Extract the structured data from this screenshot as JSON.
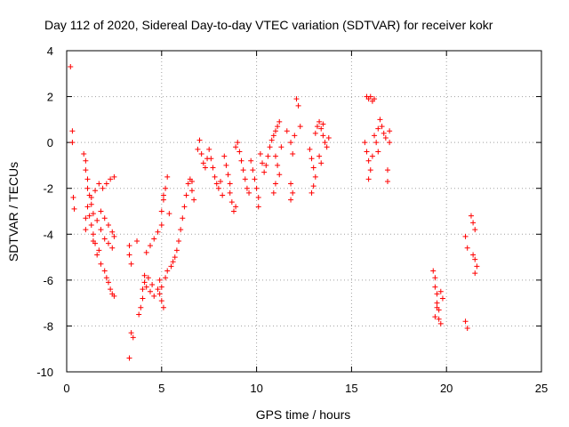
{
  "chart_data": {
    "type": "scatter",
    "title": "Day 112 of 2020, Sidereal Day-to-day VTEC variation (SDTVAR) for receiver kokr",
    "xlabel": "GPS time / hours",
    "ylabel": "SDTVAR / TECUs",
    "xlim": [
      0,
      25
    ],
    "ylim": [
      -10,
      4
    ],
    "xticks": [
      "0",
      "5",
      "10",
      "15",
      "20",
      "25"
    ],
    "yticks": [
      "-10",
      "-8",
      "-6",
      "-4",
      "-2",
      "0",
      "2",
      "4"
    ],
    "grid": true,
    "marker": "plus",
    "color": "#ff0000",
    "series": [
      {
        "name": "SDTVAR",
        "points": [
          [
            0.2,
            3.3
          ],
          [
            0.3,
            0.5
          ],
          [
            0.3,
            0.0
          ],
          [
            0.35,
            -2.4
          ],
          [
            0.4,
            -2.9
          ],
          [
            0.9,
            -0.5
          ],
          [
            1.0,
            -0.8
          ],
          [
            1.0,
            -1.2
          ],
          [
            1.1,
            -1.6
          ],
          [
            1.1,
            -2.0
          ],
          [
            1.2,
            -2.3
          ],
          [
            1.3,
            -2.7
          ],
          [
            1.4,
            -3.1
          ],
          [
            1.6,
            -3.4
          ],
          [
            1.8,
            -3.8
          ],
          [
            2.0,
            -4.2
          ],
          [
            2.2,
            -4.4
          ],
          [
            2.4,
            -4.6
          ],
          [
            1.1,
            -2.8
          ],
          [
            1.2,
            -3.2
          ],
          [
            1.3,
            -3.6
          ],
          [
            1.4,
            -4.0
          ],
          [
            1.5,
            -4.4
          ],
          [
            1.6,
            -4.9
          ],
          [
            1.8,
            -5.3
          ],
          [
            2.0,
            -5.6
          ],
          [
            2.1,
            -5.9
          ],
          [
            2.2,
            -6.1
          ],
          [
            2.3,
            -6.4
          ],
          [
            2.4,
            -6.6
          ],
          [
            2.5,
            -6.7
          ],
          [
            1.3,
            -2.4
          ],
          [
            1.5,
            -2.1
          ],
          [
            1.7,
            -1.8
          ],
          [
            1.9,
            -2.0
          ],
          [
            2.1,
            -1.8
          ],
          [
            2.3,
            -1.6
          ],
          [
            2.5,
            -1.5
          ],
          [
            1.0,
            -3.3
          ],
          [
            1.0,
            -3.8
          ],
          [
            1.4,
            -4.3
          ],
          [
            1.7,
            -4.7
          ],
          [
            1.8,
            -3.0
          ],
          [
            2.0,
            -3.3
          ],
          [
            2.2,
            -3.6
          ],
          [
            2.4,
            -3.9
          ],
          [
            2.5,
            -4.1
          ],
          [
            3.3,
            -4.5
          ],
          [
            3.3,
            -4.9
          ],
          [
            3.4,
            -5.3
          ],
          [
            3.4,
            -8.3
          ],
          [
            3.5,
            -8.5
          ],
          [
            3.3,
            -9.4
          ],
          [
            3.7,
            -4.3
          ],
          [
            3.8,
            -7.5
          ],
          [
            3.9,
            -7.2
          ],
          [
            4.0,
            -6.8
          ],
          [
            4.0,
            -6.4
          ],
          [
            4.1,
            -6.1
          ],
          [
            4.1,
            -5.8
          ],
          [
            4.2,
            -6.3
          ],
          [
            4.4,
            -6.5
          ],
          [
            4.6,
            -6.7
          ],
          [
            4.8,
            -6.4
          ],
          [
            4.9,
            -6.0
          ],
          [
            4.5,
            -6.2
          ],
          [
            4.3,
            -5.9
          ],
          [
            4.2,
            -4.8
          ],
          [
            4.4,
            -4.5
          ],
          [
            4.6,
            -4.2
          ],
          [
            4.8,
            -3.9
          ],
          [
            5.0,
            -3.6
          ],
          [
            4.9,
            -6.6
          ],
          [
            5.0,
            -6.9
          ],
          [
            5.1,
            -7.2
          ],
          [
            5.0,
            -6.3
          ],
          [
            5.2,
            -5.9
          ],
          [
            5.3,
            -5.6
          ],
          [
            5.5,
            -5.4
          ],
          [
            5.6,
            -5.2
          ],
          [
            5.7,
            -5.0
          ],
          [
            5.8,
            -4.7
          ],
          [
            5.9,
            -4.3
          ],
          [
            6.0,
            -3.8
          ],
          [
            6.1,
            -3.3
          ],
          [
            6.2,
            -2.8
          ],
          [
            6.3,
            -2.3
          ],
          [
            6.4,
            -1.8
          ],
          [
            6.5,
            -1.6
          ],
          [
            5.0,
            -3.0
          ],
          [
            5.1,
            -2.5
          ],
          [
            5.2,
            -2.0
          ],
          [
            5.3,
            -1.5
          ],
          [
            5.1,
            -2.3
          ],
          [
            5.4,
            -3.1
          ],
          [
            6.6,
            -2.1
          ],
          [
            6.7,
            -2.5
          ],
          [
            6.6,
            -1.7
          ],
          [
            6.9,
            -0.3
          ],
          [
            7.0,
            0.1
          ],
          [
            7.1,
            -0.5
          ],
          [
            7.2,
            -0.9
          ],
          [
            7.3,
            -1.1
          ],
          [
            7.4,
            -0.7
          ],
          [
            7.5,
            -0.3
          ],
          [
            7.6,
            -0.7
          ],
          [
            7.7,
            -1.1
          ],
          [
            7.8,
            -1.5
          ],
          [
            7.9,
            -1.8
          ],
          [
            8.0,
            -2.0
          ],
          [
            8.1,
            -1.7
          ],
          [
            8.2,
            -2.3
          ],
          [
            8.3,
            -0.6
          ],
          [
            8.4,
            -1.0
          ],
          [
            8.5,
            -1.4
          ],
          [
            8.6,
            -1.8
          ],
          [
            8.6,
            -2.2
          ],
          [
            8.7,
            -2.6
          ],
          [
            8.8,
            -3.0
          ],
          [
            8.9,
            -2.8
          ],
          [
            8.9,
            -0.2
          ],
          [
            9.0,
            0.0
          ],
          [
            9.1,
            -0.4
          ],
          [
            9.2,
            -0.8
          ],
          [
            9.3,
            -1.2
          ],
          [
            9.4,
            -1.6
          ],
          [
            9.5,
            -2.0
          ],
          [
            9.6,
            -2.2
          ],
          [
            9.7,
            -0.8
          ],
          [
            9.8,
            -1.2
          ],
          [
            9.9,
            -1.6
          ],
          [
            10.0,
            -2.0
          ],
          [
            10.1,
            -2.4
          ],
          [
            10.1,
            -2.8
          ],
          [
            10.2,
            -0.5
          ],
          [
            10.3,
            -0.9
          ],
          [
            10.4,
            -1.3
          ],
          [
            10.5,
            -1.0
          ],
          [
            10.6,
            -0.6
          ],
          [
            10.7,
            -0.2
          ],
          [
            10.8,
            0.1
          ],
          [
            10.9,
            0.3
          ],
          [
            11.0,
            0.5
          ],
          [
            11.1,
            0.7
          ],
          [
            11.2,
            0.9
          ],
          [
            11.0,
            -0.6
          ],
          [
            11.1,
            -1.0
          ],
          [
            11.2,
            -1.4
          ],
          [
            11.0,
            -1.8
          ],
          [
            10.9,
            -2.2
          ],
          [
            11.3,
            -0.2
          ],
          [
            11.6,
            0.5
          ],
          [
            11.8,
            0.0
          ],
          [
            11.9,
            -0.5
          ],
          [
            12.1,
            1.9
          ],
          [
            12.2,
            1.6
          ],
          [
            12.0,
            0.3
          ],
          [
            12.3,
            0.7
          ],
          [
            11.8,
            -2.5
          ],
          [
            11.9,
            -2.2
          ],
          [
            11.8,
            -1.8
          ],
          [
            12.8,
            -0.3
          ],
          [
            12.9,
            -0.7
          ],
          [
            13.0,
            -1.1
          ],
          [
            13.1,
            -1.5
          ],
          [
            12.9,
            -2.2
          ],
          [
            13.0,
            -1.9
          ],
          [
            13.1,
            0.4
          ],
          [
            13.2,
            0.7
          ],
          [
            13.3,
            0.9
          ],
          [
            13.4,
            0.6
          ],
          [
            13.5,
            0.3
          ],
          [
            13.6,
            0.0
          ],
          [
            13.7,
            -0.2
          ],
          [
            13.8,
            0.2
          ],
          [
            13.5,
            0.8
          ],
          [
            13.3,
            -0.6
          ],
          [
            13.4,
            -0.9
          ],
          [
            15.8,
            -0.4
          ],
          [
            15.9,
            -0.8
          ],
          [
            16.0,
            -1.2
          ],
          [
            15.9,
            -1.6
          ],
          [
            15.7,
            0.0
          ],
          [
            16.1,
            -0.6
          ],
          [
            15.8,
            2.0
          ],
          [
            15.9,
            1.9
          ],
          [
            16.0,
            2.0
          ],
          [
            16.1,
            1.8
          ],
          [
            16.2,
            1.9
          ],
          [
            16.2,
            0.3
          ],
          [
            16.3,
            0.0
          ],
          [
            16.4,
            0.6
          ],
          [
            16.5,
            1.0
          ],
          [
            16.6,
            0.7
          ],
          [
            16.7,
            0.4
          ],
          [
            16.8,
            0.2
          ],
          [
            16.4,
            -0.4
          ],
          [
            17.0,
            0.5
          ],
          [
            17.0,
            0.0
          ],
          [
            16.9,
            -1.2
          ],
          [
            16.9,
            -1.7
          ],
          [
            19.3,
            -5.6
          ],
          [
            19.4,
            -5.9
          ],
          [
            19.4,
            -6.3
          ],
          [
            19.5,
            -6.6
          ],
          [
            19.5,
            -7.0
          ],
          [
            19.6,
            -7.3
          ],
          [
            19.6,
            -7.7
          ],
          [
            19.7,
            -7.9
          ],
          [
            19.4,
            -7.6
          ],
          [
            19.5,
            -7.2
          ],
          [
            19.7,
            -6.5
          ],
          [
            19.8,
            -6.8
          ],
          [
            21.0,
            -4.1
          ],
          [
            21.1,
            -4.6
          ],
          [
            21.0,
            -7.8
          ],
          [
            21.1,
            -8.1
          ],
          [
            21.3,
            -3.2
          ],
          [
            21.4,
            -3.5
          ],
          [
            21.5,
            -3.8
          ],
          [
            21.4,
            -4.9
          ],
          [
            21.5,
            -5.1
          ],
          [
            21.6,
            -5.4
          ],
          [
            21.5,
            -5.7
          ]
        ]
      }
    ]
  }
}
